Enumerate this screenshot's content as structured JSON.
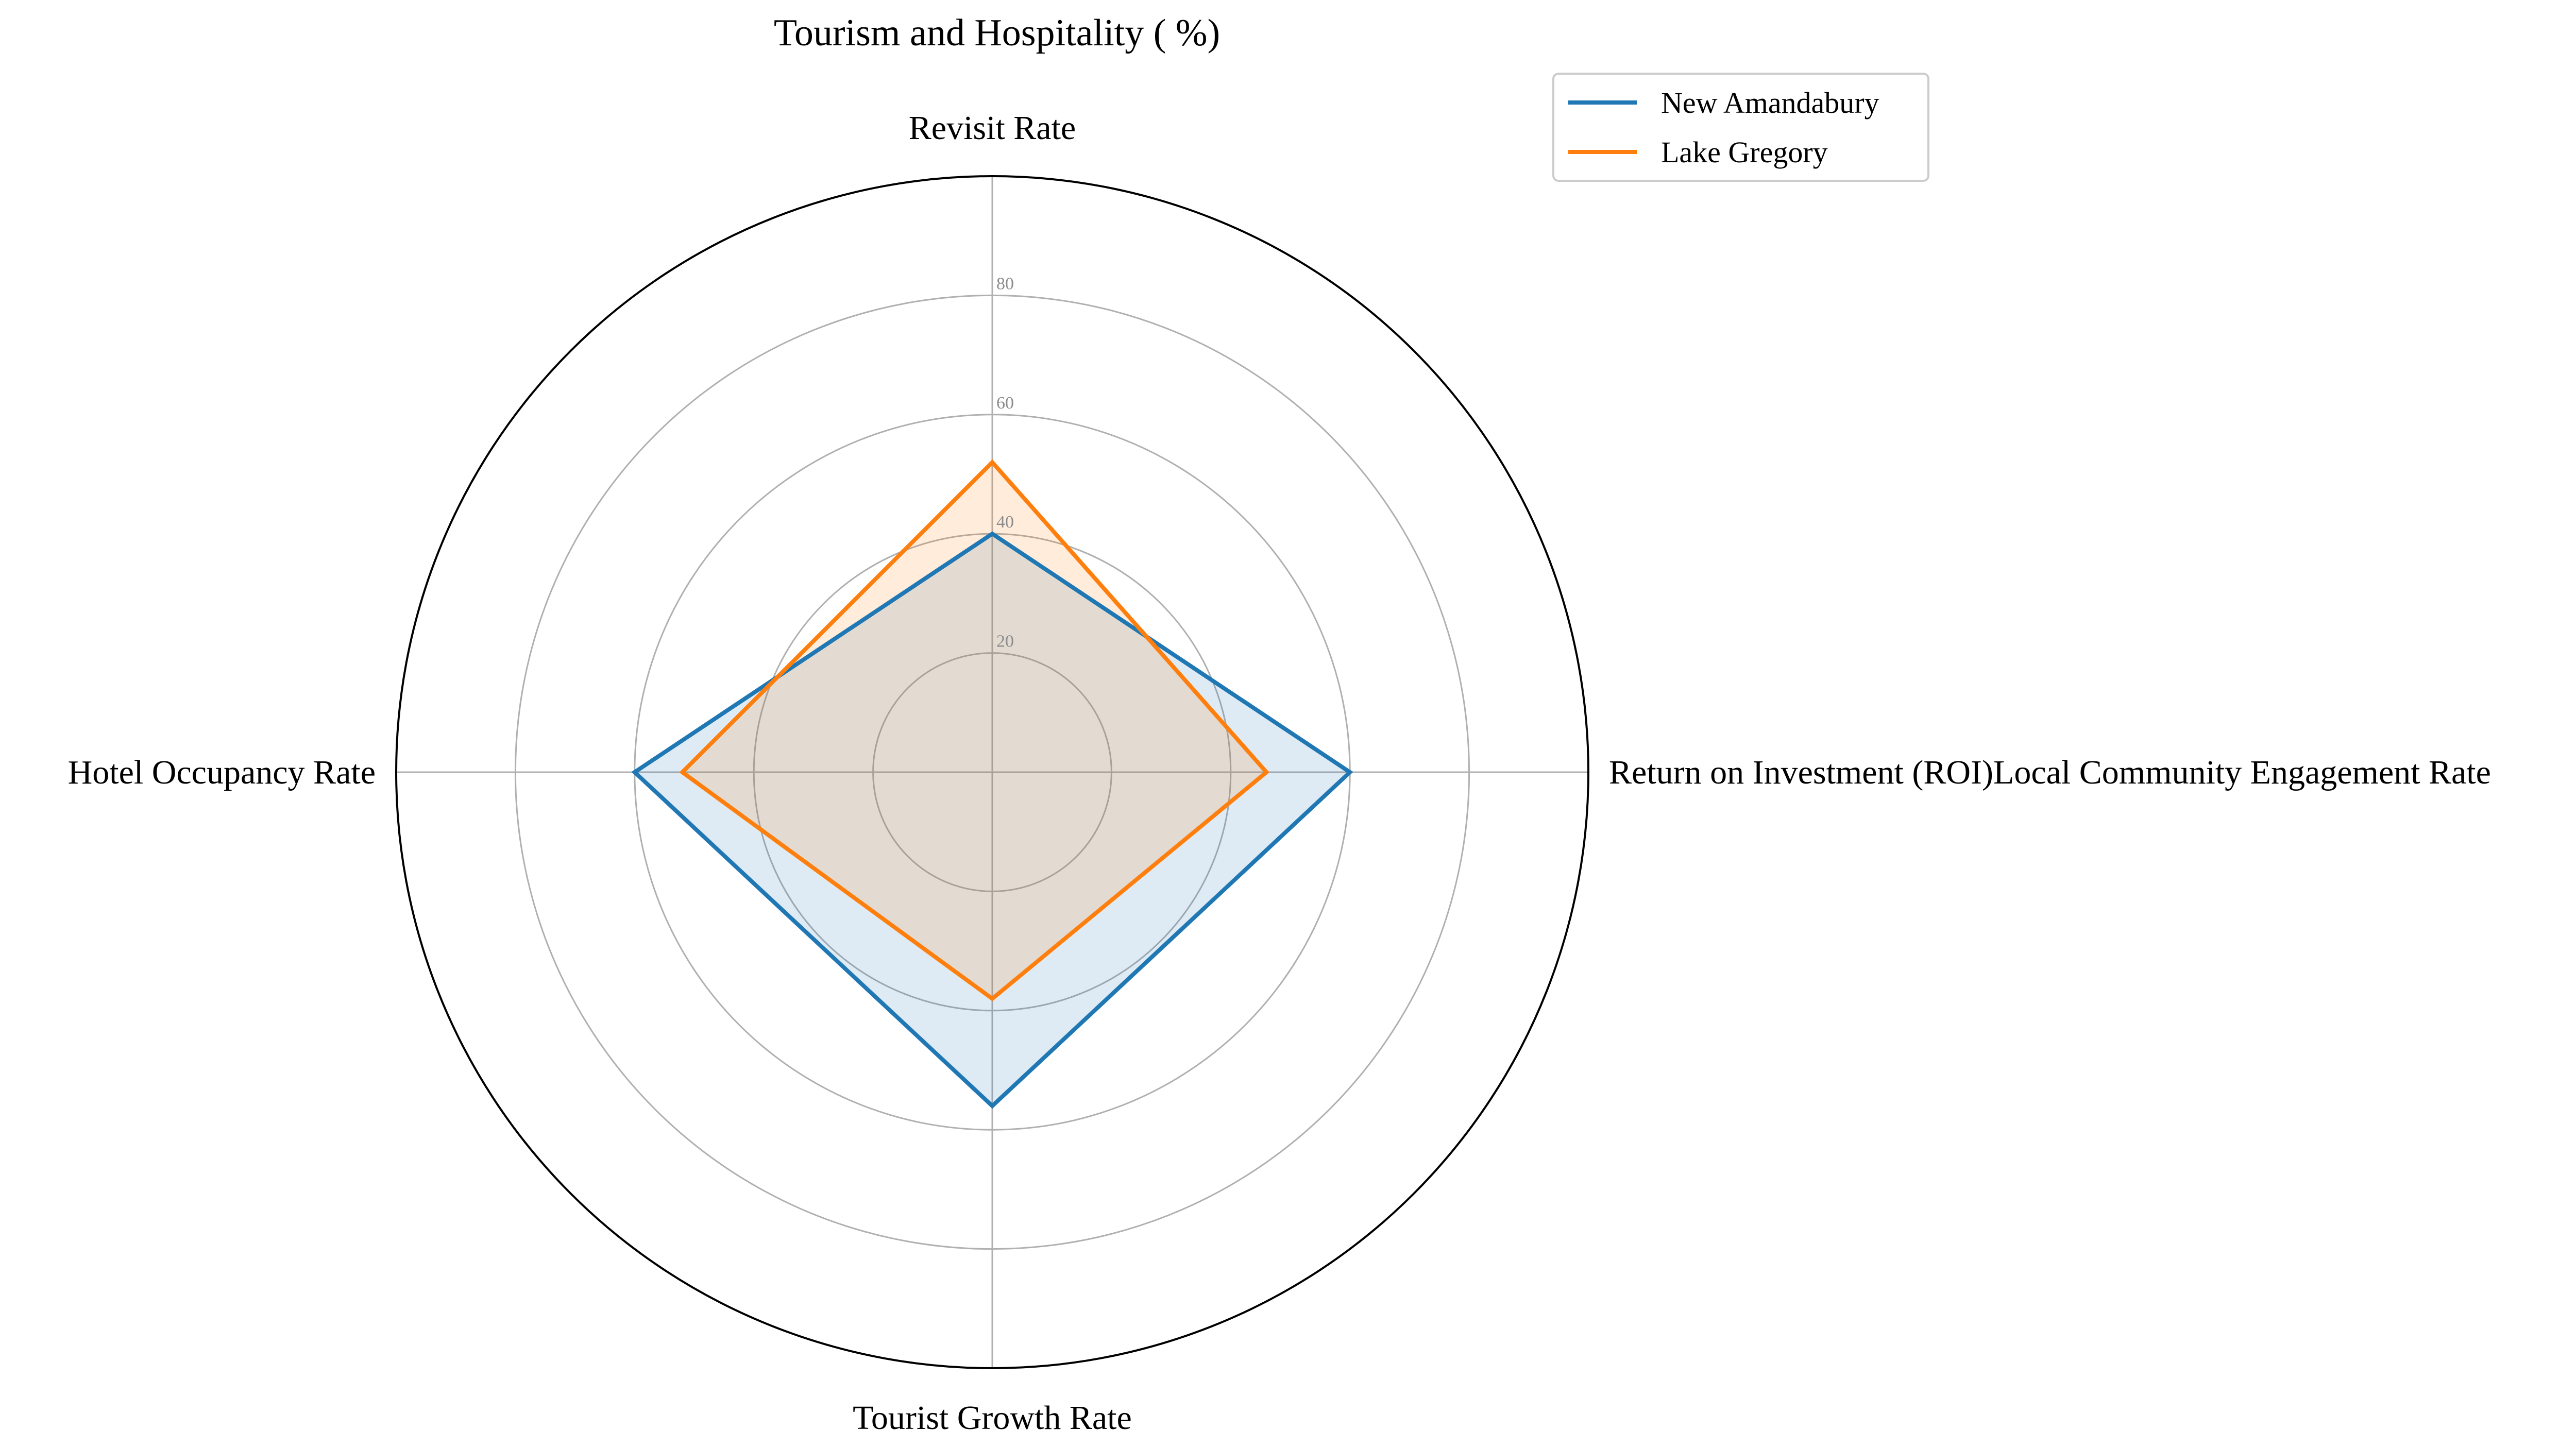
{
  "chart_data": {
    "type": "radar",
    "title": "Tourism and Hospitality ( %)",
    "categories": [
      "Revisit Rate",
      "Return on Investment (ROI)Local Community Engagement Rate",
      "Tourist Growth Rate",
      "Hotel Occupancy Rate"
    ],
    "radial_ticks": [
      "20",
      "40",
      "60",
      "80"
    ],
    "rlim": [
      0,
      100
    ],
    "grid": true,
    "legend_position": "top-right",
    "series": [
      {
        "name": "New Amandabury",
        "color": "#1f77b4",
        "values": [
          40,
          60,
          56,
          60
        ]
      },
      {
        "name": "Lake Gregory",
        "color": "#ff7f0e",
        "values": [
          52,
          46,
          38,
          52
        ]
      }
    ]
  }
}
